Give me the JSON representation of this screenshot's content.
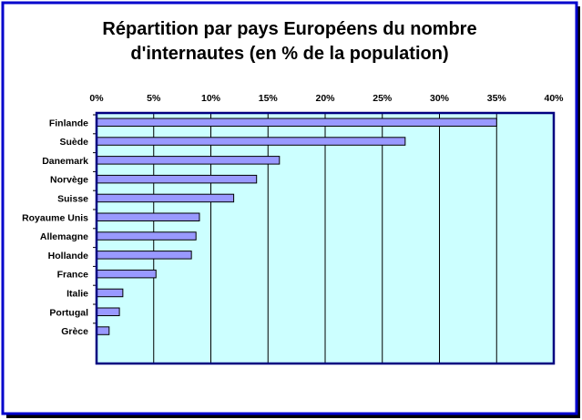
{
  "chart_data": {
    "type": "bar",
    "orientation": "horizontal",
    "title_lines": [
      "Répartition par pays Européens du nombre",
      "d'internautes (en % de la population)"
    ],
    "categories": [
      "Finlande",
      "Suède",
      "Danemark",
      "Norvège",
      "Suisse",
      "Royaume Unis",
      "Allemagne",
      "Hollande",
      "France",
      "Italie",
      "Portugal",
      "Grèce"
    ],
    "values": [
      35,
      27,
      16,
      14,
      12,
      9,
      8.7,
      8.3,
      5.2,
      2.3,
      2,
      1.1
    ],
    "xlim": [
      0,
      40
    ],
    "x_ticks": [
      "0%",
      "5%",
      "10%",
      "15%",
      "20%",
      "25%",
      "30%",
      "35%",
      "40%"
    ],
    "x_tick_values": [
      0,
      5,
      10,
      15,
      20,
      25,
      30,
      35,
      40
    ],
    "axis_position": "top",
    "grid": true,
    "legend": "none",
    "colors": {
      "bar_fill": "#9999ff",
      "plot_background": "#ccffff",
      "plot_border": "#000080",
      "frame_border": "#0000cc",
      "gridline": "#000000"
    }
  }
}
